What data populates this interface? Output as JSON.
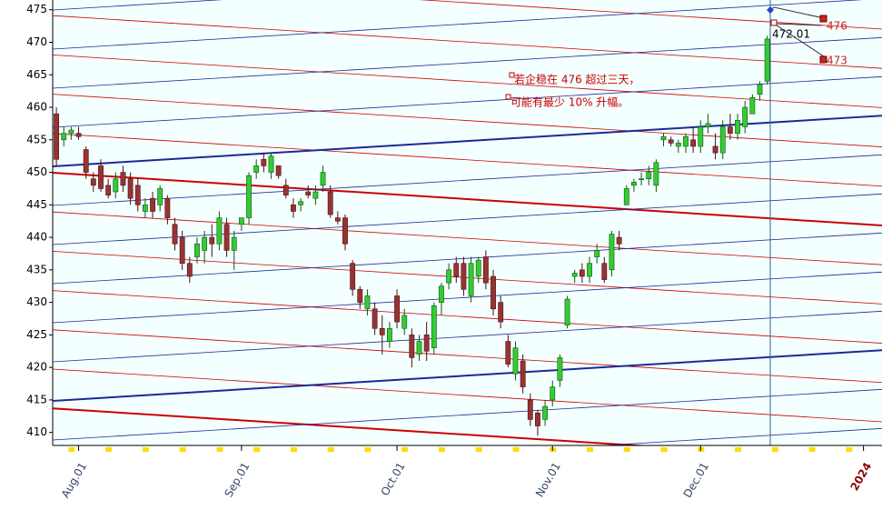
{
  "chart_data": {
    "type": "candlestick",
    "categories": [
      null,
      null,
      null,
      "Aug.01",
      null,
      null,
      null,
      null,
      null,
      null,
      null,
      null,
      null,
      null,
      null,
      null,
      null,
      null,
      null,
      null,
      null,
      null,
      null,
      null,
      null,
      "Sep.01",
      null,
      null,
      null,
      null,
      null,
      null,
      null,
      null,
      null,
      null,
      null,
      null,
      null,
      null,
      null,
      null,
      null,
      null,
      null,
      null,
      "Oct.01",
      null,
      null,
      null,
      null,
      null,
      null,
      null,
      null,
      null,
      null,
      null,
      null,
      null,
      null,
      null,
      null,
      null,
      null,
      null,
      null,
      "Nov.01",
      null,
      null,
      null,
      null,
      null,
      null,
      null,
      null,
      null,
      null,
      null,
      null,
      null,
      null,
      null,
      null,
      null,
      null,
      null,
      "Dec.01",
      null,
      null,
      null,
      null,
      null,
      null,
      null,
      null,
      null,
      null,
      null,
      null,
      null,
      null,
      null,
      null,
      null,
      null,
      null,
      null,
      null,
      "2024",
      null,
      null
    ],
    "ohlc": [
      [
        459,
        460,
        451,
        452
      ],
      [
        455,
        457,
        454,
        456
      ],
      [
        456,
        457,
        455,
        456.5
      ],
      [
        456,
        457,
        455,
        455.5
      ],
      [
        453.5,
        454,
        449,
        450
      ],
      [
        449,
        450,
        447,
        448
      ],
      [
        451,
        452,
        447,
        447.5
      ],
      [
        448,
        449,
        446,
        446.5
      ],
      [
        447,
        450,
        446,
        449
      ],
      [
        450,
        451,
        447,
        448
      ],
      [
        449,
        450,
        445,
        446
      ],
      [
        448,
        449,
        444,
        445
      ],
      [
        444,
        446,
        443,
        445
      ],
      [
        446,
        447,
        443,
        444
      ],
      [
        445,
        448,
        444,
        447.5
      ],
      [
        446,
        446.5,
        442,
        443
      ],
      [
        442,
        443,
        438,
        439
      ],
      [
        440,
        441,
        435,
        436
      ],
      [
        436,
        437,
        433,
        434
      ],
      [
        437,
        440,
        436,
        439
      ],
      [
        438,
        441,
        436,
        440
      ],
      [
        440,
        442,
        437,
        439
      ],
      [
        439,
        444,
        438,
        443
      ],
      [
        442,
        443,
        437,
        438
      ],
      [
        438,
        441,
        435,
        440
      ],
      [
        442,
        443,
        441,
        443
      ],
      [
        443,
        450,
        442,
        449.5
      ],
      [
        450,
        452,
        449,
        451
      ],
      [
        452,
        453,
        450,
        451
      ],
      [
        450,
        453,
        449,
        452.5
      ],
      [
        451,
        451,
        449,
        449.5
      ],
      [
        448,
        449,
        446,
        446.5
      ],
      [
        445,
        446,
        443,
        444
      ],
      [
        445,
        446,
        444,
        445.5
      ],
      [
        447,
        448,
        446,
        446.5
      ],
      [
        446,
        448,
        445,
        447
      ],
      [
        448,
        451,
        447,
        450
      ],
      [
        447,
        448,
        443,
        443.5
      ],
      [
        443,
        444,
        442,
        442.5
      ],
      [
        443,
        443.5,
        438,
        439
      ],
      [
        436,
        436.5,
        431,
        432
      ],
      [
        432,
        432.5,
        429,
        430
      ],
      [
        429,
        432,
        428,
        431
      ],
      [
        429,
        430,
        425,
        426
      ],
      [
        426,
        428,
        422,
        425
      ],
      [
        424,
        427,
        423,
        426
      ],
      [
        431,
        432,
        426,
        427
      ],
      [
        426,
        429,
        425,
        428
      ],
      [
        425,
        426,
        420,
        421.5
      ],
      [
        422,
        425,
        421,
        424
      ],
      [
        425,
        427,
        421,
        422.5
      ],
      [
        423,
        430,
        422,
        429.5
      ],
      [
        430,
        433,
        428,
        432.5
      ],
      [
        433,
        436,
        432,
        435
      ],
      [
        436,
        437,
        433,
        434
      ],
      [
        436,
        437,
        431,
        432
      ],
      [
        431,
        437,
        430,
        436
      ],
      [
        434,
        437,
        433,
        436.5
      ],
      [
        437,
        438,
        432,
        433
      ],
      [
        434,
        435,
        428,
        429
      ],
      [
        430,
        431,
        426,
        427
      ],
      [
        424,
        425,
        420,
        420.5
      ],
      [
        419,
        424,
        418,
        423
      ],
      [
        421,
        422,
        416,
        417
      ],
      [
        415,
        416,
        411,
        412
      ],
      [
        413,
        413.5,
        409.5,
        411
      ],
      [
        412,
        415,
        411,
        414
      ],
      [
        415,
        418,
        414,
        417
      ],
      [
        418,
        422,
        417,
        421.5
      ],
      [
        426.5,
        431,
        426,
        430.5
      ],
      [
        434,
        435,
        433,
        434.5
      ],
      [
        435,
        436,
        433,
        434
      ],
      [
        434,
        437,
        433,
        436
      ],
      [
        437,
        439,
        436,
        438
      ],
      [
        436,
        437,
        433,
        433.5
      ],
      [
        435,
        441,
        434,
        440.5
      ],
      [
        440,
        441,
        438,
        439
      ],
      [
        445,
        448,
        445,
        447.5
      ],
      [
        448,
        449,
        447,
        448.5
      ],
      [
        449,
        450,
        448,
        449
      ],
      [
        449,
        451,
        448,
        450
      ],
      [
        448,
        452,
        447,
        451.5
      ],
      [
        455,
        456,
        454,
        455.5
      ],
      [
        455,
        455.5,
        454,
        454.5
      ],
      [
        454,
        455,
        453,
        454.5
      ],
      [
        454,
        456,
        453,
        455.5
      ],
      [
        455,
        457,
        453,
        454
      ],
      [
        454,
        458,
        453,
        457
      ],
      [
        457,
        459,
        456,
        457.5
      ],
      [
        454,
        456,
        452,
        453
      ],
      [
        453,
        458,
        452,
        457
      ],
      [
        457,
        459,
        455,
        456
      ],
      [
        456,
        459,
        455,
        458
      ],
      [
        457,
        461,
        456,
        460
      ],
      [
        459,
        462,
        459,
        461.5
      ],
      [
        462,
        464,
        461,
        463.5
      ],
      [
        464,
        471,
        463.5,
        470.5
      ],
      null,
      null,
      null,
      null,
      null,
      null,
      null,
      null,
      null,
      null,
      null,
      null,
      null,
      null,
      null
    ],
    "up_color": "#33cc33",
    "down_color": "#993333",
    "ylim": [
      408,
      476.5
    ],
    "yticks": [
      410,
      415,
      420,
      425,
      430,
      435,
      440,
      445,
      450,
      455,
      460,
      465,
      470,
      475
    ],
    "annotations": [
      "若企稳在 476 超过三天，",
      "可能有最少 10% 升幅。"
    ],
    "markers": [
      "472.01",
      "476",
      "473"
    ]
  }
}
